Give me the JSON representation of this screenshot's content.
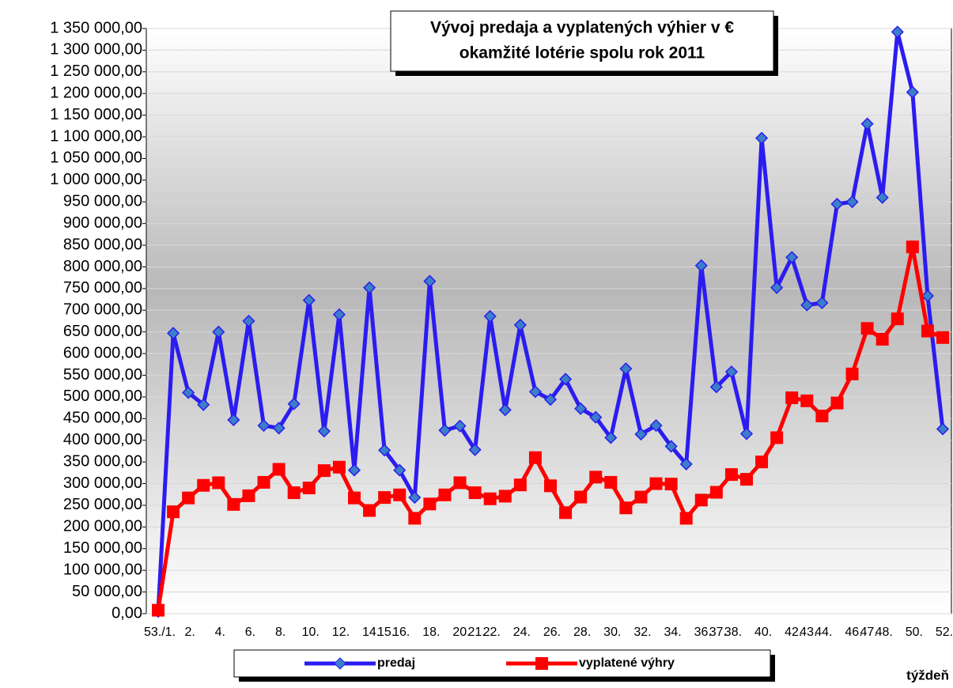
{
  "chart_data": {
    "type": "line",
    "title": "Vývoj predaja a vyplatených výhier v €",
    "subtitle": "okamžité lotérie spolu rok 2011",
    "x_label": "týždeň",
    "categories": [
      "53./1.",
      null,
      "2.",
      null,
      "4.",
      null,
      "6.",
      null,
      "8.",
      null,
      "10.",
      null,
      "12.",
      null,
      "14.",
      "15.",
      "16.",
      null,
      "18.",
      null,
      "20.",
      "21.",
      "22.",
      null,
      "24.",
      null,
      "26.",
      null,
      "28.",
      null,
      "30.",
      null,
      "32.",
      null,
      "34.",
      null,
      "36.",
      "37.",
      "38.",
      null,
      "40.",
      null,
      "42.",
      "43.",
      "44.",
      null,
      "46.",
      "47.",
      "48.",
      null,
      "50.",
      null,
      "52."
    ],
    "series": [
      {
        "name": "predaj",
        "color": "#2b1cf0",
        "marker": "diamond",
        "values": [
          5000,
          647000,
          510000,
          482000,
          650000,
          447000,
          675000,
          434000,
          428000,
          484000,
          723000,
          421000,
          690000,
          331000,
          752000,
          377000,
          331000,
          268000,
          767000,
          423000,
          433000,
          378000,
          686000,
          470000,
          666000,
          512000,
          494000,
          541000,
          473000,
          453000,
          406000,
          565000,
          414000,
          434000,
          386000,
          345000,
          803000,
          523000,
          558000,
          415000,
          1097000,
          752000,
          822000,
          712000,
          717000,
          945000,
          950000,
          1130000,
          960000,
          1342000,
          1203000,
          733000,
          426000
        ]
      },
      {
        "name": "vyplatené výhry",
        "color": "#ff0000",
        "marker": "square",
        "values": [
          8000,
          235000,
          267000,
          296000,
          302000,
          252000,
          272000,
          303000,
          333000,
          279000,
          290000,
          330000,
          338000,
          267000,
          238000,
          268000,
          274000,
          220000,
          253000,
          274000,
          302000,
          279000,
          265000,
          271000,
          297000,
          360000,
          295000,
          233000,
          269000,
          315000,
          303000,
          244000,
          269000,
          300000,
          299000,
          220000,
          262000,
          280000,
          321000,
          310000,
          350000,
          406000,
          498000,
          491000,
          456000,
          486000,
          553000,
          658000,
          633000,
          680000,
          846000,
          652000,
          637000
        ]
      }
    ],
    "ylim": [
      0,
      1350000
    ],
    "yticks": [
      {
        "value": 0,
        "label": "0,00"
      },
      {
        "value": 50000,
        "label": "50 000,00"
      },
      {
        "value": 100000,
        "label": "100 000,00"
      },
      {
        "value": 150000,
        "label": "150 000,00"
      },
      {
        "value": 200000,
        "label": "200 000,00"
      },
      {
        "value": 250000,
        "label": "250 000,00"
      },
      {
        "value": 300000,
        "label": "300 000,00"
      },
      {
        "value": 350000,
        "label": "350 000,00"
      },
      {
        "value": 400000,
        "label": "400 000,00"
      },
      {
        "value": 450000,
        "label": "450 000,00"
      },
      {
        "value": 500000,
        "label": "500 000,00"
      },
      {
        "value": 550000,
        "label": "550 000,00"
      },
      {
        "value": 600000,
        "label": "600 000,00"
      },
      {
        "value": 650000,
        "label": "650 000,00"
      },
      {
        "value": 700000,
        "label": "700 000,00"
      },
      {
        "value": 750000,
        "label": "750 000,00"
      },
      {
        "value": 800000,
        "label": "800 000,00"
      },
      {
        "value": 850000,
        "label": "850 000,00"
      },
      {
        "value": 900000,
        "label": "900 000,00"
      },
      {
        "value": 950000,
        "label": "950 000,00"
      },
      {
        "value": 1000000,
        "label": "1 000 000,00"
      },
      {
        "value": 1050000,
        "label": "1 050 000,00"
      },
      {
        "value": 1100000,
        "label": "1 100 000,00"
      },
      {
        "value": 1150000,
        "label": "1 150 000,00"
      },
      {
        "value": 1200000,
        "label": "1 200 000,00"
      },
      {
        "value": 1250000,
        "label": "1 250 000,00"
      },
      {
        "value": 1300000,
        "label": "1 300 000,00"
      },
      {
        "value": 1350000,
        "label": "1 350 000,00"
      }
    ],
    "grid": true,
    "legend": "bottom"
  }
}
